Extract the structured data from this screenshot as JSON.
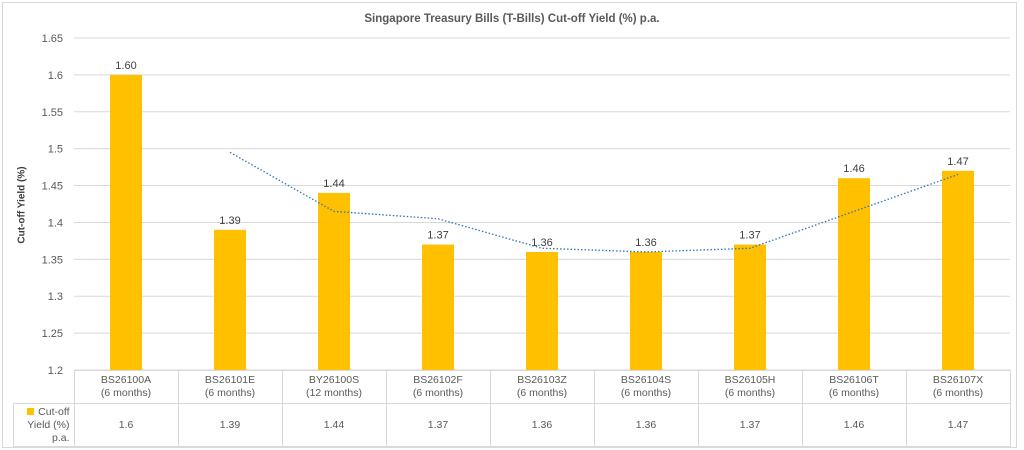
{
  "chart_data": {
    "type": "bar",
    "title": "Singapore Treasury Bills (T-Bills) Cut-off Yield (%) p.a.",
    "xlabel": "",
    "ylabel": "Cut-off Yield (%)",
    "ylim": [
      1.2,
      1.65
    ],
    "yticks": [
      "1.65",
      "1.6",
      "1.55",
      "1.5",
      "1.45",
      "1.4",
      "1.35",
      "1.3",
      "1.25",
      "1.2"
    ],
    "grid": true,
    "legend_position": "data-table",
    "categories": [
      {
        "code": "BS26100A",
        "tenor": "(6 months)"
      },
      {
        "code": "BS26101E",
        "tenor": "(6 months)"
      },
      {
        "code": "BY26100S",
        "tenor": "(12 months)"
      },
      {
        "code": "BS26102F",
        "tenor": "(6 months)"
      },
      {
        "code": "BS26103Z",
        "tenor": "(6 months)"
      },
      {
        "code": "BS26104S",
        "tenor": "(6 months)"
      },
      {
        "code": "BS26105H",
        "tenor": "(6 months)"
      },
      {
        "code": "BS26106T",
        "tenor": "(6 months)"
      },
      {
        "code": "BS26107X",
        "tenor": "(6 months)"
      }
    ],
    "series": [
      {
        "name": "Cut-off Yield (%) p.a.",
        "color": "#ffc000",
        "values": [
          1.6,
          1.39,
          1.44,
          1.37,
          1.36,
          1.36,
          1.37,
          1.46,
          1.47
        ],
        "data_labels": [
          "1.60",
          "1.39",
          "1.44",
          "1.37",
          "1.36",
          "1.36",
          "1.37",
          "1.46",
          "1.47"
        ],
        "table_values": [
          "1.6",
          "1.39",
          "1.44",
          "1.37",
          "1.36",
          "1.36",
          "1.37",
          "1.46",
          "1.47"
        ]
      }
    ],
    "trendline": {
      "type": "moving-average",
      "period": 2,
      "style": "dotted",
      "color": "#2e75b6",
      "values": [
        null,
        1.495,
        1.415,
        1.405,
        1.365,
        1.36,
        1.365,
        1.415,
        1.465
      ]
    }
  },
  "legend": {
    "label_line1": "Cut-off",
    "label_line2": "Yield (%)",
    "label_line3": "p.a."
  }
}
